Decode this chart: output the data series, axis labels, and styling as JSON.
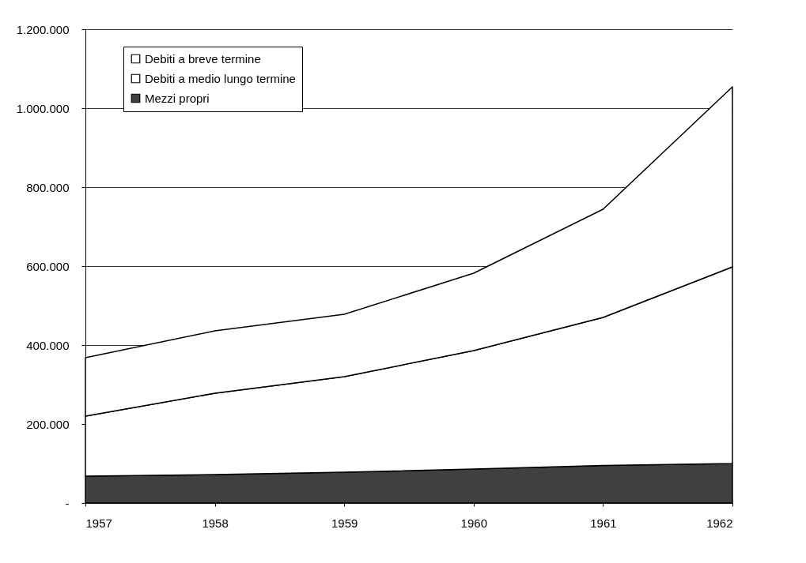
{
  "chart_data": {
    "type": "area",
    "stacked": true,
    "x": [
      1957,
      1958,
      1959,
      1960,
      1961,
      1962
    ],
    "series": [
      {
        "name": "Mezzi propri",
        "color": "#404040",
        "values": [
          68000,
          72000,
          78000,
          86000,
          95000,
          100000
        ]
      },
      {
        "name": "Debiti a medio lungo termine",
        "color": "#ffffff",
        "values": [
          152000,
          206000,
          242000,
          300000,
          375000,
          498000
        ]
      },
      {
        "name": "Debiti a breve termine",
        "color": "#ffffff",
        "values": [
          148000,
          158000,
          158000,
          196000,
          274000,
          456000
        ]
      }
    ],
    "xlim": [
      1957,
      1962
    ],
    "xticks": [
      1957,
      1958,
      1959,
      1960,
      1961,
      1962
    ],
    "ylim": [
      0,
      1200000
    ],
    "yticks": [
      {
        "value": 0,
        "label": "-"
      },
      {
        "value": 200000,
        "label": "200.000"
      },
      {
        "value": 400000,
        "label": "400.000"
      },
      {
        "value": 600000,
        "label": "600.000"
      },
      {
        "value": 800000,
        "label": "800.000"
      },
      {
        "value": 1000000,
        "label": "1.000.000"
      },
      {
        "value": 1200000,
        "label": "1.200.000"
      }
    ],
    "grid": "y",
    "legend": "top left"
  }
}
